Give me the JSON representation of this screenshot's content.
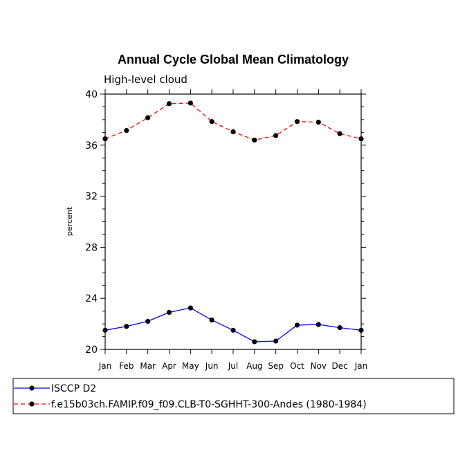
{
  "chart_data": {
    "type": "line",
    "title": "Annual Cycle Global Mean Climatology",
    "subtitle": "High-level cloud",
    "xlabel": "",
    "ylabel": "percent",
    "categories": [
      "Jan",
      "Feb",
      "Mar",
      "Apr",
      "May",
      "Jun",
      "Jul",
      "Aug",
      "Sep",
      "Oct",
      "Nov",
      "Dec",
      "Jan"
    ],
    "ylim": [
      20,
      40
    ],
    "yticks": [
      20,
      24,
      28,
      32,
      36,
      40
    ],
    "grid": false,
    "legend_position": "bottom",
    "series": [
      {
        "name": "ISCCP D2",
        "color": "#0000ff",
        "dash": "solid",
        "values": [
          21.5,
          21.8,
          22.2,
          22.9,
          23.25,
          22.3,
          21.5,
          20.6,
          20.65,
          21.9,
          21.95,
          21.7,
          21.5
        ]
      },
      {
        "name": "f.e15b03ch.FAMIP.f09_f09.CLB-T0-SGHHT-300-Andes (1980-1984)",
        "color": "#ff0000",
        "dash": "dashed",
        "values": [
          36.5,
          37.15,
          38.15,
          39.25,
          39.3,
          37.85,
          37.05,
          36.4,
          36.75,
          37.85,
          37.8,
          36.9,
          36.5
        ]
      }
    ]
  }
}
